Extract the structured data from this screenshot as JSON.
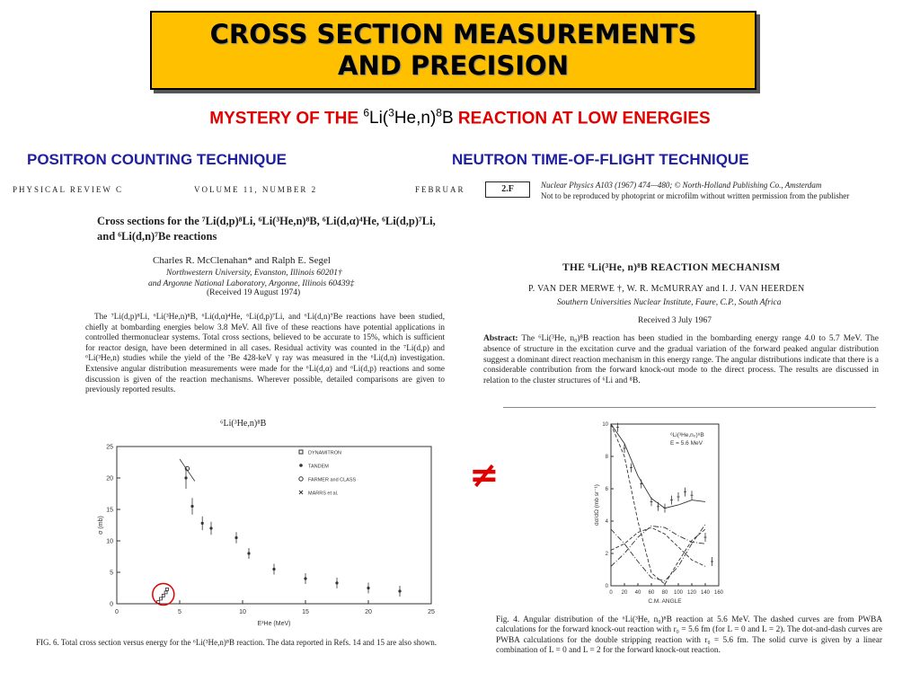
{
  "title": {
    "line1": "CROSS SECTION MEASUREMENTS",
    "line2": "AND PRECISION",
    "bg_color": "#ffc000"
  },
  "subtitle": {
    "prefix": "MYSTERY OF THE ",
    "rxn_a": "6",
    "rxn_b": "Li(",
    "rxn_c": "3",
    "rxn_d": "He,n)",
    "rxn_e": "8",
    "rxn_f": "B",
    "suffix": " REACTION AT LOW ENERGIES",
    "color": "#e00000"
  },
  "techniques": {
    "left": "POSITRON COUNTING TECHNIQUE",
    "right": "NEUTRON TIME-OF-FLIGHT TECHNIQUE",
    "color": "#1f1fa0"
  },
  "not_equal": "≠",
  "left_paper": {
    "journal": "PHYSICAL REVIEW C",
    "volume": "VOLUME 11, NUMBER 2",
    "date": "FEBRUAR",
    "title": "Cross sections for the ⁷Li(d,p)⁸Li, ⁶Li(³He,n)⁸B, ⁶Li(d,α)⁴He, ⁶Li(d,p)⁷Li, and ⁶Li(d,n)⁷Be reactions",
    "authors": "Charles R. McClenahan* and Ralph E. Segel",
    "affiliation1": "Northwestern University, Evanston, Illinois 60201†",
    "affiliation2": "and Argonne National Laboratory, Argonne, Illinois 60439‡",
    "received": "(Received 19 August 1974)",
    "abstract": "The ⁷Li(d,p)⁸Li, ⁶Li(³He,n)⁸B, ⁶Li(d,α)⁴He, ⁶Li(d,p)⁷Li, and ⁶Li(d,n)⁷Be reactions have been studied, chiefly at bombarding energies below 3.8 MeV. All five of these reactions have potential applications in controlled thermonuclear systems. Total cross sections, believed to be accurate to 15%, which is sufficient for reactor design, have been determined in all cases. Residual activity was counted in the ⁷Li(d,p) and ⁶Li(³He,n) studies while the yield of the ⁷Be 428-keV γ ray was measured in the ⁶Li(d,n) investigation. Extensive angular distribution measurements were made for the ⁶Li(d,α) and ⁶Li(d,p) reactions and some discussion is given of the reaction mechanisms. Wherever possible, detailed comparisons are given to previously reported results.",
    "figure_title": "⁶Li(³He,n)⁸B",
    "caption": "FIG. 6. Total cross section versus energy for the ⁶Li(³He,n)⁸B reaction. The data reported in Refs. 14 and 15 are also shown."
  },
  "right_paper": {
    "box_label": "2.F",
    "journal_line1": "Nuclear Physics A103 (1967) 474—480; © North-Holland Publishing Co., Amsterdam",
    "journal_line2": "Not to be reproduced by photoprint or microfilm without written permission from the publisher",
    "title": "THE ⁶Li(³He, n)⁸B REACTION MECHANISM",
    "authors": "P. VAN DER MERWE †, W. R. McMURRAY and I. J. VAN HEERDEN",
    "affiliation": "Southern Universities Nuclear Institute, Faure, C.P., South Africa",
    "received": "Received 3 July 1967",
    "abstract_label": "Abstract:",
    "abstract": "The ⁶Li(³He, n₀)⁸B reaction has been studied in the bombarding energy range 4.0 to 5.7 MeV. The absence of structure in the excitation curve and the gradual variation of the forward peaked angular distribution suggest a dominant direct reaction mechanism in this energy range. The angular distributions indicate that there is a considerable contribution from the forward knock-out mode to the direct process. The results are discussed in relation to the cluster structures of ⁶Li and ⁸B.",
    "caption": "Fig. 4. Angular distribution of the ⁶Li(³He, n₀)⁸B reaction at 5.6 MeV. The dashed curves are from PWBA calculations for the forward knock-out reaction with r₀ = 5.6 fm (for L = 0 and L = 2). The dot-and-dash curves are PWBA calculations for the double stripping reaction with r₀ = 5.6 fm. The solid curve is given by a linear combination of L = 0 and L = 2 for the forward knock-out reaction."
  },
  "chart_data": [
    {
      "type": "scatter",
      "title": "⁶Li(³He,n)⁸B",
      "xlabel": "E³He (MeV)",
      "ylabel": "σ (mb)",
      "xlim": [
        0,
        25
      ],
      "ylim": [
        0,
        25
      ],
      "xticks": [
        0,
        5,
        10,
        15,
        20,
        25
      ],
      "yticks": [
        0,
        5,
        10,
        15,
        20,
        25
      ],
      "legend": [
        "DYNAMITRON",
        "TANDEM",
        "FARMER and CLASS",
        "MARRS et al."
      ],
      "legend_position": "top-right",
      "series": [
        {
          "name": "DYNAMITRON",
          "x": [
            3.3,
            3.5,
            3.7,
            3.9,
            4.0
          ],
          "y": [
            0.3,
            0.8,
            1.3,
            1.8,
            2.3
          ]
        },
        {
          "name": "TANDEM",
          "x": [
            5.5,
            6.0,
            6.8,
            7.5,
            9.5,
            10.5,
            12.5,
            15.0,
            17.5,
            20.0,
            22.5
          ],
          "y": [
            20.0,
            15.5,
            12.8,
            12.0,
            10.5,
            8.0,
            5.5,
            4.0,
            3.3,
            2.5,
            2.0
          ]
        },
        {
          "name": "FARMER and CLASS",
          "x": [
            5.6
          ],
          "y": [
            21.5
          ]
        }
      ]
    },
    {
      "type": "line",
      "title": "⁶Li(³He,n₀)⁸B",
      "subtitle": "E = 5.6 MeV",
      "xlabel": "C.M. ANGLE",
      "ylabel": "dσ/dΩ (mb sr⁻¹)",
      "xlim": [
        0,
        160
      ],
      "ylim": [
        0,
        10
      ],
      "xticks": [
        0,
        20,
        40,
        60,
        80,
        100,
        120,
        140,
        160
      ],
      "yticks": [
        0,
        2,
        4,
        6,
        8,
        10
      ],
      "series": [
        {
          "name": "data",
          "x": [
            10,
            20,
            30,
            45,
            60,
            70,
            80,
            90,
            100,
            110,
            120,
            140,
            150
          ],
          "y": [
            9.8,
            8.5,
            7.3,
            6.3,
            5.2,
            4.9,
            4.8,
            5.3,
            5.5,
            5.8,
            5.6,
            3.0,
            1.5
          ]
        }
      ]
    }
  ]
}
